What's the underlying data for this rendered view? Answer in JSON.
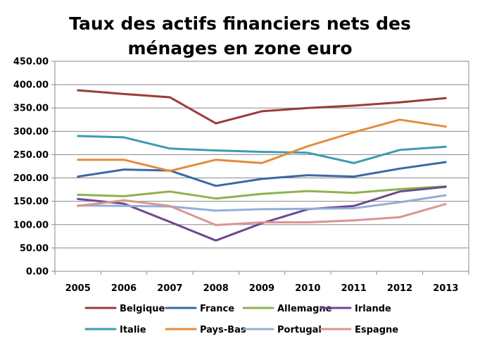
{
  "chart_data": {
    "type": "line",
    "title_lines": [
      "Taux des actifs financiers nets des",
      "ménages en zone euro"
    ],
    "xlabel": "",
    "ylabel": "",
    "categories": [
      "2005",
      "2006",
      "2007",
      "2008",
      "2009",
      "2010",
      "2011",
      "2012",
      "2013"
    ],
    "ylim": [
      0,
      450
    ],
    "ytick_step": 50,
    "ytick_labels": [
      "0.00",
      "50.00",
      "100.00",
      "150.00",
      "200.00",
      "250.00",
      "300.00",
      "350.00",
      "400.00",
      "450.00"
    ],
    "grid": true,
    "legend_position": "bottom",
    "series": [
      {
        "name": "Belgique",
        "color": "#9b3b36",
        "values": [
          388,
          380,
          373,
          317,
          343,
          350,
          355,
          362,
          371
        ]
      },
      {
        "name": "France",
        "color": "#3b68a5",
        "values": [
          203,
          218,
          216,
          183,
          198,
          206,
          203,
          220,
          234
        ]
      },
      {
        "name": "Allemagne",
        "color": "#8fb24e",
        "values": [
          164,
          161,
          171,
          156,
          166,
          172,
          168,
          176,
          182
        ]
      },
      {
        "name": "Irlande",
        "color": "#6c4a8f",
        "values": [
          155,
          145,
          106,
          66,
          103,
          133,
          140,
          171,
          181
        ]
      },
      {
        "name": "Italie",
        "color": "#3d9cb0",
        "values": [
          290,
          287,
          263,
          259,
          256,
          254,
          232,
          260,
          267
        ]
      },
      {
        "name": "Pays-Bas",
        "color": "#e48b3a",
        "values": [
          239,
          239,
          215,
          239,
          232,
          268,
          298,
          325,
          310
        ]
      },
      {
        "name": "Portugal",
        "color": "#94aed8",
        "values": [
          141,
          140,
          139,
          130,
          133,
          134,
          135,
          148,
          163
        ]
      },
      {
        "name": "Espagne",
        "color": "#d99592",
        "values": [
          140,
          152,
          140,
          99,
          105,
          105,
          109,
          116,
          144
        ]
      }
    ]
  }
}
